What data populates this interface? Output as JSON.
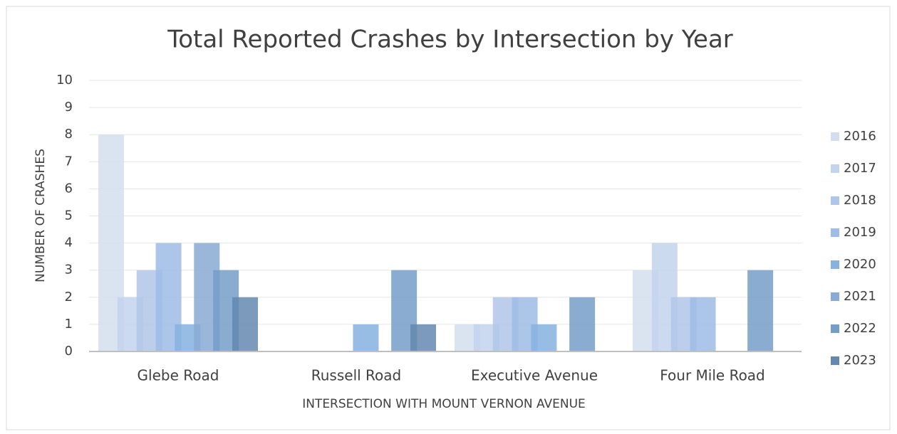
{
  "chart_data": {
    "type": "bar",
    "title": "Total Reported Crashes by Intersection by Year",
    "x_label": "INTERSECTION WITH MOUNT VERNON AVENUE",
    "y_label": "NUMBER OF CRASHES",
    "categories": [
      "Glebe Road",
      "Russell Road",
      "Executive Avenue",
      "Four Mile Road"
    ],
    "series": [
      {
        "name": "2016",
        "color": "#d3dfef",
        "values": [
          8,
          0,
          1,
          3
        ]
      },
      {
        "name": "2017",
        "color": "#c3d4ed",
        "values": [
          2,
          0,
          1,
          4
        ]
      },
      {
        "name": "2018",
        "color": "#b0c6e9",
        "values": [
          3,
          0,
          2,
          2
        ]
      },
      {
        "name": "2019",
        "color": "#9dbce6",
        "values": [
          4,
          0,
          2,
          2
        ]
      },
      {
        "name": "2020",
        "color": "#86b1e0",
        "values": [
          1,
          1,
          1,
          0
        ]
      },
      {
        "name": "2021",
        "color": "#88aad4",
        "values": [
          4,
          0,
          0,
          0
        ]
      },
      {
        "name": "2022",
        "color": "#749dc8",
        "values": [
          3,
          3,
          2,
          3
        ]
      },
      {
        "name": "2023",
        "color": "#6488b0",
        "values": [
          2,
          1,
          0,
          0
        ]
      }
    ],
    "ylim": [
      0,
      10
    ],
    "yticks": [
      0,
      1,
      2,
      3,
      4,
      5,
      6,
      7,
      8,
      9,
      10
    ],
    "grid": true,
    "legend": "right"
  }
}
